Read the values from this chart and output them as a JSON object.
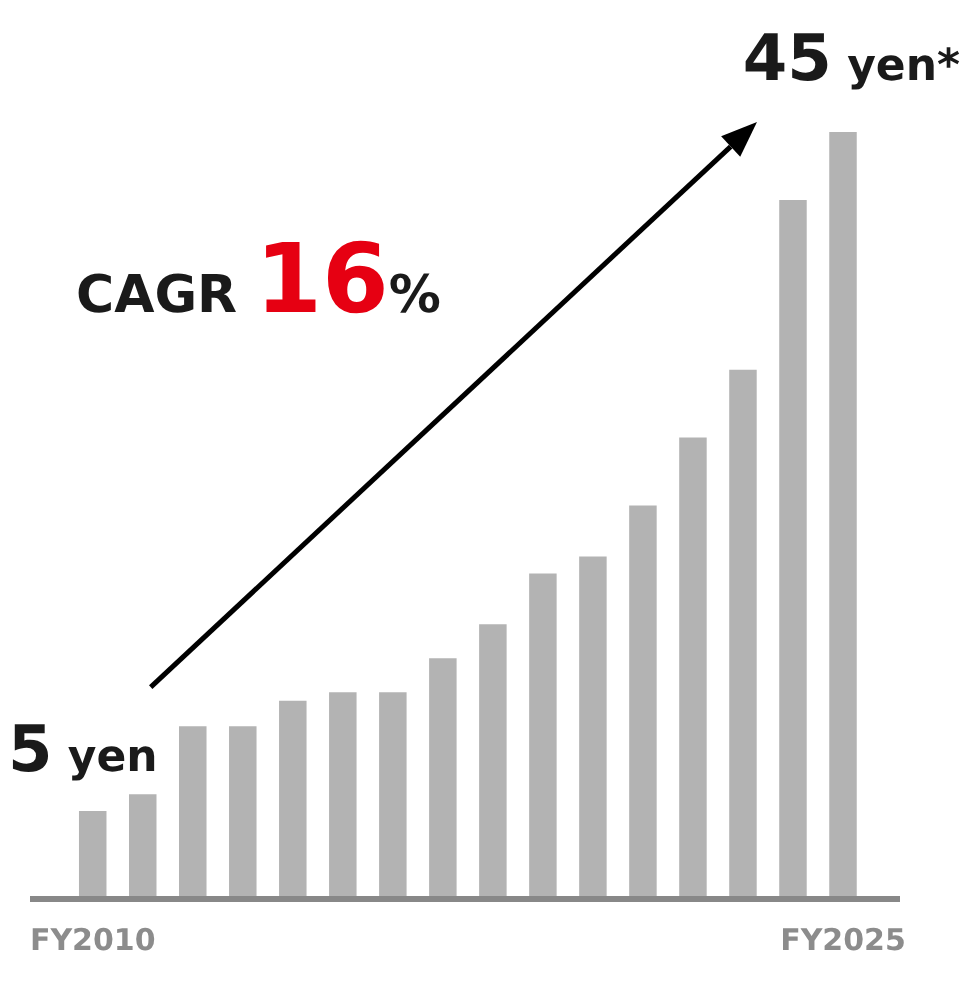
{
  "chart_data": {
    "type": "bar",
    "categories": [
      "FY2010",
      null,
      null,
      null,
      null,
      null,
      null,
      null,
      null,
      null,
      null,
      null,
      null,
      null,
      null,
      "FY2025"
    ],
    "values": [
      5,
      6,
      10,
      10,
      11.5,
      12,
      12,
      14,
      16,
      19,
      20,
      23,
      27,
      31,
      41,
      45
    ],
    "value_labels": [
      "5 yen",
      null,
      null,
      null,
      null,
      null,
      null,
      null,
      null,
      null,
      null,
      null,
      null,
      null,
      null,
      "45 yen*"
    ],
    "color": "#b3b3b3",
    "annotations": [
      "CAGR 16%"
    ],
    "tick_labels": "x",
    "grid": false,
    "legend": false
  }
}
